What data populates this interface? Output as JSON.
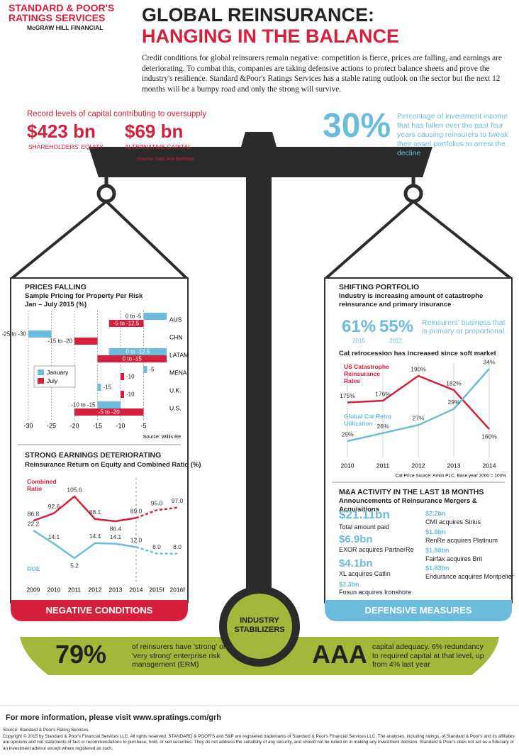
{
  "header": {
    "logo": [
      "STANDARD & POOR'S",
      "RATINGS SERVICES"
    ],
    "logo_sub": "McGRAW HILL FINANCIAL",
    "title": "GLOBAL REINSURANCE:",
    "subtitle": "HANGING IN THE BALANCE",
    "intro": "Credit conditions for global reinsurers remain negative: competition is fierce, prices are falling, and earnings are deteriorating. To combat this, companies are taking defensive actions to protect balance sheets and prove the industry's resilience. Standard &Poor's Ratings Services has a stable rating outlook on the sector but the next 12 months will be a bumpy road and only the strong will survive."
  },
  "capital": {
    "heading": "Record levels of capital contributing to oversupply",
    "items": [
      {
        "value": "$423 bn",
        "label": "SHAREHOLDERS' EQUITY"
      },
      {
        "value": "$69 bn",
        "label": "ALTERNATIVE CAPITAL"
      }
    ],
    "source": "(Source: S&P, Aon Benfield)"
  },
  "investment": {
    "value": "30%",
    "text": "Percentage of investment income that has fallen over the past four years causing reinsurers to tweak their asset portfolios to arrest the decline"
  },
  "chart_data": [
    {
      "type": "bar",
      "orientation": "horizontal",
      "title": "PRICES FALLING",
      "subtitle": "Sample Pricing for Property Per Risk",
      "period": "Jan – July 2015 (%)",
      "categories": [
        "AUS",
        "CHN",
        "LATAM",
        "MENA",
        "U.K.",
        "U.S."
      ],
      "series": [
        {
          "name": "January",
          "color": "#6bbcdc",
          "values": [
            [
              0,
              -5
            ],
            [
              -25,
              -30
            ],
            [
              0,
              -12.5
            ],
            -5,
            -15,
            [
              -10,
              -15
            ]
          ],
          "value_labels": [
            "0 to -5",
            "-25 to -30",
            "0 to -12.5",
            "-5",
            "-15",
            "-10 to -15"
          ]
        },
        {
          "name": "July",
          "color": "#d6203b",
          "values": [
            [
              -5,
              -12.5
            ],
            [
              -15,
              -20
            ],
            [
              0,
              -15
            ],
            -10,
            -10,
            [
              -5,
              -20
            ]
          ],
          "value_labels": [
            "-5 to -12.5",
            "-15 to -20",
            "0 to -15",
            "-10",
            "-10",
            "-5 to -20"
          ]
        }
      ],
      "xlim": [
        -30,
        0
      ],
      "xticks": [
        -30,
        -25,
        -20,
        -15,
        -10,
        -5
      ],
      "grid": true,
      "legend": "left",
      "source": "Source: Willis Re"
    },
    {
      "type": "line",
      "title": "STRONG EARNINGS DETERIORATING",
      "subtitle": "Reinsurance Return on Equity and Combined Ratio (%)",
      "categories": [
        "2009",
        "2010",
        "2011",
        "2012",
        "2013",
        "2014",
        "2015f",
        "2016f"
      ],
      "forecast_from": "2014",
      "series": [
        {
          "name": "Combined Ratio",
          "color": "#d6203b",
          "values": [
            86.8,
            92.6,
            105.6,
            88.1,
            86.4,
            89.0,
            95.0,
            97.0
          ],
          "value_labels": [
            "86.8",
            "92.6",
            "105.6",
            "88.1",
            "86.4",
            "89.0",
            "95.0",
            "97.0"
          ]
        },
        {
          "name": "ROE",
          "color": "#6bbcdc",
          "values": [
            22.2,
            14.1,
            5.2,
            14.4,
            14.1,
            12.0,
            8.0,
            8.0
          ],
          "value_labels": [
            "22.2",
            "14.1",
            "5.2",
            "14.4",
            "14.1",
            "12.0",
            "8.0",
            "8.0"
          ]
        }
      ]
    },
    {
      "type": "line",
      "title": "Cat retrocession has increased since soft market",
      "categories": [
        "2010",
        "2011",
        "2012",
        "2013",
        "2014"
      ],
      "series": [
        {
          "name": "US Catastrophe Reinsurance Rates",
          "color": "#d6203b",
          "values": [
            175,
            176,
            190,
            182,
            160
          ],
          "value_labels": [
            "175%",
            "176%",
            "190%",
            "182%",
            "160%"
          ]
        },
        {
          "name": "Global Cat Retro Utilization",
          "color": "#6bbcdc",
          "values": [
            25,
            26,
            27,
            29,
            34
          ],
          "value_labels": [
            "25%",
            "26%",
            "27%",
            "29%",
            "34%"
          ]
        }
      ],
      "grid": true,
      "source": "Cat Price Source: Amlin PLC; Base year 2000 = 100%"
    }
  ],
  "shifting_portfolio": {
    "title": "SHIFTING PORTFOLIO",
    "subtitle": "Industry is increasing amount of catastrophe reinsurance and primary insurance",
    "stats": [
      {
        "value": "61%",
        "year": "2015"
      },
      {
        "value": "55%",
        "year": "2012"
      }
    ],
    "note": "Reinsurers' business that is primary or proportional"
  },
  "ma": {
    "title": "M&A ACTIVITY IN THE LAST 18 MONTHS",
    "subtitle": "Announcements of Reinsurance Mergers & Acquisitions",
    "total": {
      "value": "$21.11bn",
      "label": "Total amount paid"
    },
    "deals": [
      {
        "value": "$6.9bn",
        "label": "EXOR acquires PartnerRe"
      },
      {
        "value": "$4.1bn",
        "label": "XL acquires Catlin"
      },
      {
        "value": "$2.3bn",
        "label": "Fosun acquires Ironshore"
      },
      {
        "value": "$2.2bn",
        "label": "CMI acquires Sirius"
      },
      {
        "value": "$1.9bn",
        "label": "RenRe acquires Platinum"
      },
      {
        "value": "$1.88bn",
        "label": "Fairfax acquires Brit"
      },
      {
        "value": "$1.83bn",
        "label": "Endurance acquires Montpelier"
      }
    ]
  },
  "banners": {
    "negative": "NEGATIVE CONDITIONS",
    "defensive": "DEFENSIVE MEASURES",
    "stabilizers": "INDUSTRY STABILIZERS"
  },
  "erm": {
    "value": "79%",
    "text": "of reinsurers have 'strong' or 'very strong' enterprise risk management (ERM)"
  },
  "aaa": {
    "value": "AAA",
    "text": "capital adequacy. 6% redundancy to required capital at that level, up from 4% last year"
  },
  "footer": {
    "more": "For more information, please visit www.spratings.com/grh",
    "source": "Source: Standard & Poor's Rating Services.",
    "copyright": "Copyright © 2015 by Standard & Poor's Financial Services LLC. All rights reserved. STANDARD & POOR'S and S&P are registered trademarks of Standard & Poor's Financial Services LLC. The analyses, including ratings, of Standard & Poor's and its affiliates are opinions and not statements of fact or recommendations to purchase, hold, or sell securities. They do not address the suitability of any security, and should not be relied on in making any investment decision. Standard & Poor's does not act as a fiduciary or an investment advisor except where registered as such."
  }
}
